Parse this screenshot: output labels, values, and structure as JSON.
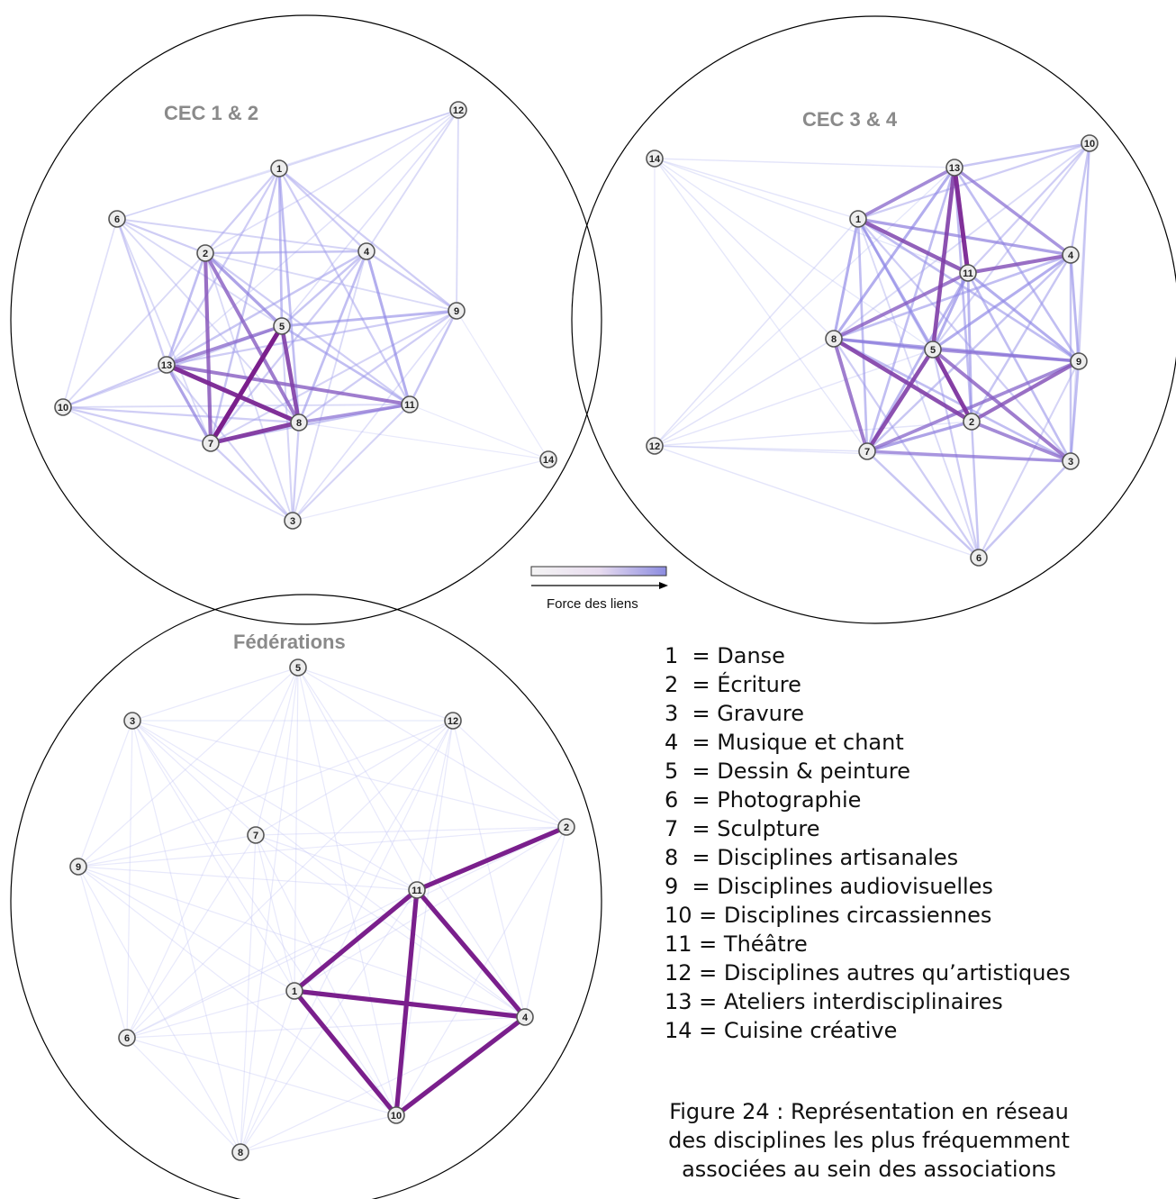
{
  "panels": [
    {
      "title": "CEC 1 & 2",
      "nodes": [
        "1",
        "2",
        "3",
        "4",
        "5",
        "6",
        "7",
        "8",
        "9",
        "10",
        "11",
        "12",
        "13",
        "14"
      ],
      "edges": [
        [
          "5",
          "7",
          1.0
        ],
        [
          "13",
          "8",
          0.95
        ],
        [
          "7",
          "8",
          0.9
        ],
        [
          "5",
          "8",
          0.85
        ],
        [
          "2",
          "7",
          0.75
        ],
        [
          "2",
          "8",
          0.7
        ],
        [
          "13",
          "11",
          0.7
        ],
        [
          "13",
          "5",
          0.65
        ],
        [
          "8",
          "11",
          0.6
        ],
        [
          "2",
          "5",
          0.55
        ],
        [
          "13",
          "7",
          0.55
        ],
        [
          "4",
          "11",
          0.5
        ],
        [
          "5",
          "9",
          0.45
        ],
        [
          "1",
          "5",
          0.4
        ],
        [
          "1",
          "8",
          0.4
        ],
        [
          "4",
          "8",
          0.4
        ],
        [
          "1",
          "7",
          0.35
        ],
        [
          "4",
          "5",
          0.35
        ],
        [
          "2",
          "4",
          0.35
        ],
        [
          "9",
          "11",
          0.35
        ],
        [
          "13",
          "4",
          0.35
        ],
        [
          "1",
          "2",
          0.3
        ],
        [
          "1",
          "4",
          0.3
        ],
        [
          "1",
          "9",
          0.3
        ],
        [
          "1",
          "13",
          0.3
        ],
        [
          "6",
          "2",
          0.3
        ],
        [
          "6",
          "13",
          0.3
        ],
        [
          "6",
          "4",
          0.25
        ],
        [
          "10",
          "13",
          0.3
        ],
        [
          "10",
          "7",
          0.3
        ],
        [
          "10",
          "8",
          0.3
        ],
        [
          "10",
          "5",
          0.25
        ],
        [
          "3",
          "7",
          0.3
        ],
        [
          "3",
          "8",
          0.3
        ],
        [
          "3",
          "5",
          0.25
        ],
        [
          "3",
          "13",
          0.25
        ],
        [
          "3",
          "11",
          0.25
        ],
        [
          "9",
          "8",
          0.3
        ],
        [
          "9",
          "7",
          0.25
        ],
        [
          "9",
          "13",
          0.3
        ],
        [
          "9",
          "2",
          0.2
        ],
        [
          "12",
          "1",
          0.2
        ],
        [
          "12",
          "4",
          0.2
        ],
        [
          "12",
          "9",
          0.2
        ],
        [
          "12",
          "2",
          0.15
        ],
        [
          "12",
          "5",
          0.15
        ],
        [
          "12",
          "13",
          0.12
        ],
        [
          "12",
          "6",
          0.1
        ],
        [
          "6",
          "1",
          0.15
        ],
        [
          "6",
          "7",
          0.2
        ],
        [
          "6",
          "8",
          0.2
        ],
        [
          "6",
          "5",
          0.2
        ],
        [
          "1",
          "11",
          0.3
        ],
        [
          "2",
          "11",
          0.3
        ],
        [
          "7",
          "11",
          0.35
        ],
        [
          "5",
          "11",
          0.4
        ],
        [
          "2",
          "13",
          0.4
        ],
        [
          "4",
          "9",
          0.3
        ],
        [
          "4",
          "7",
          0.3
        ],
        [
          "10",
          "6",
          0.15
        ],
        [
          "10",
          "2",
          0.2
        ],
        [
          "10",
          "11",
          0.2
        ],
        [
          "3",
          "4",
          0.2
        ],
        [
          "3",
          "9",
          0.15
        ],
        [
          "3",
          "2",
          0.2
        ],
        [
          "14",
          "11",
          0.05
        ],
        [
          "14",
          "9",
          0.05
        ],
        [
          "14",
          "3",
          0.05
        ],
        [
          "14",
          "8",
          0.05
        ],
        [
          "3",
          "10",
          0.15
        ]
      ]
    },
    {
      "title": "CEC 3 & 4",
      "nodes": [
        "1",
        "2",
        "3",
        "4",
        "5",
        "6",
        "7",
        "8",
        "9",
        "10",
        "11",
        "12",
        "13",
        "14"
      ],
      "edges": [
        [
          "13",
          "11",
          0.95
        ],
        [
          "13",
          "5",
          0.85
        ],
        [
          "5",
          "2",
          0.9
        ],
        [
          "5",
          "7",
          0.85
        ],
        [
          "8",
          "2",
          0.85
        ],
        [
          "1",
          "11",
          0.8
        ],
        [
          "2",
          "9",
          0.75
        ],
        [
          "4",
          "11",
          0.75
        ],
        [
          "8",
          "11",
          0.7
        ],
        [
          "8",
          "7",
          0.7
        ],
        [
          "5",
          "3",
          0.7
        ],
        [
          "1",
          "13",
          0.65
        ],
        [
          "13",
          "4",
          0.6
        ],
        [
          "7",
          "9",
          0.65
        ],
        [
          "5",
          "9",
          0.6
        ],
        [
          "8",
          "9",
          0.55
        ],
        [
          "8",
          "5",
          0.55
        ],
        [
          "2",
          "3",
          0.65
        ],
        [
          "7",
          "3",
          0.6
        ],
        [
          "1",
          "4",
          0.55
        ],
        [
          "13",
          "8",
          0.5
        ],
        [
          "2",
          "7",
          0.55
        ],
        [
          "1",
          "5",
          0.5
        ],
        [
          "1",
          "8",
          0.5
        ],
        [
          "11",
          "9",
          0.5
        ],
        [
          "11",
          "5",
          0.5
        ],
        [
          "4",
          "5",
          0.5
        ],
        [
          "4",
          "9",
          0.45
        ],
        [
          "3",
          "9",
          0.4
        ],
        [
          "13",
          "9",
          0.4
        ],
        [
          "13",
          "7",
          0.4
        ],
        [
          "13",
          "2",
          0.4
        ],
        [
          "10",
          "13",
          0.35
        ],
        [
          "10",
          "4",
          0.35
        ],
        [
          "10",
          "1",
          0.3
        ],
        [
          "10",
          "11",
          0.3
        ],
        [
          "10",
          "9",
          0.3
        ],
        [
          "10",
          "5",
          0.25
        ],
        [
          "11",
          "7",
          0.45
        ],
        [
          "11",
          "2",
          0.45
        ],
        [
          "11",
          "3",
          0.4
        ],
        [
          "4",
          "8",
          0.4
        ],
        [
          "4",
          "7",
          0.35
        ],
        [
          "4",
          "2",
          0.35
        ],
        [
          "4",
          "3",
          0.35
        ],
        [
          "1",
          "9",
          0.4
        ],
        [
          "1",
          "7",
          0.4
        ],
        [
          "1",
          "2",
          0.35
        ],
        [
          "1",
          "3",
          0.3
        ],
        [
          "8",
          "3",
          0.4
        ],
        [
          "6",
          "7",
          0.35
        ],
        [
          "6",
          "2",
          0.35
        ],
        [
          "6",
          "3",
          0.35
        ],
        [
          "6",
          "5",
          0.3
        ],
        [
          "6",
          "8",
          0.3
        ],
        [
          "6",
          "9",
          0.25
        ],
        [
          "6",
          "1",
          0.2
        ],
        [
          "14",
          "13",
          0.1
        ],
        [
          "14",
          "1",
          0.1
        ],
        [
          "14",
          "8",
          0.1
        ],
        [
          "14",
          "5",
          0.08
        ],
        [
          "14",
          "11",
          0.08
        ],
        [
          "14",
          "7",
          0.08
        ],
        [
          "12",
          "1",
          0.12
        ],
        [
          "12",
          "8",
          0.12
        ],
        [
          "12",
          "7",
          0.12
        ],
        [
          "12",
          "5",
          0.1
        ],
        [
          "12",
          "3",
          0.1
        ],
        [
          "12",
          "2",
          0.1
        ],
        [
          "12",
          "6",
          0.1
        ],
        [
          "12",
          "13",
          0.08
        ],
        [
          "12",
          "14",
          0.06
        ],
        [
          "10",
          "3",
          0.2
        ],
        [
          "10",
          "8",
          0.2
        ]
      ]
    },
    {
      "title": "Fédérations",
      "nodes": [
        "1",
        "2",
        "3",
        "4",
        "5",
        "6",
        "7",
        "8",
        "9",
        "10",
        "11",
        "12"
      ],
      "edges": [
        [
          "11",
          "2",
          1.0
        ],
        [
          "11",
          "1",
          1.0
        ],
        [
          "11",
          "4",
          1.0
        ],
        [
          "11",
          "10",
          1.0
        ],
        [
          "1",
          "4",
          1.0
        ],
        [
          "1",
          "10",
          1.0
        ],
        [
          "10",
          "4",
          1.0
        ],
        [
          "5",
          "3",
          0.05
        ],
        [
          "5",
          "12",
          0.05
        ],
        [
          "5",
          "7",
          0.05
        ],
        [
          "5",
          "9",
          0.05
        ],
        [
          "5",
          "6",
          0.05
        ],
        [
          "5",
          "8",
          0.05
        ],
        [
          "5",
          "1",
          0.05
        ],
        [
          "5",
          "11",
          0.05
        ],
        [
          "5",
          "10",
          0.05
        ],
        [
          "5",
          "4",
          0.05
        ],
        [
          "5",
          "2",
          0.05
        ],
        [
          "3",
          "12",
          0.05
        ],
        [
          "3",
          "7",
          0.05
        ],
        [
          "3",
          "9",
          0.05
        ],
        [
          "3",
          "6",
          0.05
        ],
        [
          "3",
          "8",
          0.05
        ],
        [
          "3",
          "1",
          0.05
        ],
        [
          "3",
          "11",
          0.05
        ],
        [
          "3",
          "2",
          0.05
        ],
        [
          "3",
          "10",
          0.05
        ],
        [
          "3",
          "4",
          0.05
        ],
        [
          "12",
          "7",
          0.05
        ],
        [
          "12",
          "9",
          0.05
        ],
        [
          "12",
          "6",
          0.05
        ],
        [
          "12",
          "8",
          0.05
        ],
        [
          "12",
          "1",
          0.05
        ],
        [
          "12",
          "11",
          0.05
        ],
        [
          "12",
          "2",
          0.05
        ],
        [
          "12",
          "10",
          0.05
        ],
        [
          "12",
          "4",
          0.05
        ],
        [
          "9",
          "7",
          0.05
        ],
        [
          "9",
          "2",
          0.05
        ],
        [
          "9",
          "11",
          0.05
        ],
        [
          "9",
          "1",
          0.05
        ],
        [
          "9",
          "6",
          0.05
        ],
        [
          "9",
          "8",
          0.05
        ],
        [
          "9",
          "10",
          0.05
        ],
        [
          "9",
          "4",
          0.05
        ],
        [
          "7",
          "2",
          0.05
        ],
        [
          "7",
          "11",
          0.05
        ],
        [
          "7",
          "1",
          0.05
        ],
        [
          "7",
          "6",
          0.05
        ],
        [
          "7",
          "8",
          0.05
        ],
        [
          "7",
          "10",
          0.05
        ],
        [
          "7",
          "4",
          0.05
        ],
        [
          "6",
          "1",
          0.05
        ],
        [
          "6",
          "11",
          0.05
        ],
        [
          "6",
          "10",
          0.05
        ],
        [
          "6",
          "4",
          0.05
        ],
        [
          "6",
          "2",
          0.05
        ],
        [
          "6",
          "8",
          0.05
        ],
        [
          "8",
          "1",
          0.05
        ],
        [
          "8",
          "10",
          0.05
        ],
        [
          "8",
          "11",
          0.05
        ],
        [
          "8",
          "4",
          0.05
        ],
        [
          "2",
          "1",
          0.05
        ],
        [
          "2",
          "4",
          0.05
        ],
        [
          "2",
          "10",
          0.05
        ]
      ]
    }
  ],
  "colorbar": {
    "label": "Force des liens",
    "color_low": "#f4f4f4",
    "color_high": "#8c8ce0"
  },
  "edge_colors": {
    "weak": "#c8cdf5",
    "medium": "#8f87e6",
    "strong": "#7a1f8c"
  },
  "legend": [
    {
      "number": "1",
      "spacer": "  ",
      "name": "= Danse"
    },
    {
      "number": "2",
      "spacer": "  ",
      "name": "= Écriture"
    },
    {
      "number": "3",
      "spacer": "  ",
      "name": "= Gravure"
    },
    {
      "number": "4",
      "spacer": "  ",
      "name": "= Musique et chant"
    },
    {
      "number": "5",
      "spacer": "  ",
      "name": "= Dessin & peinture"
    },
    {
      "number": "6",
      "spacer": "  ",
      "name": "= Photographie"
    },
    {
      "number": "7",
      "spacer": "  ",
      "name": "= Sculpture"
    },
    {
      "number": "8",
      "spacer": "  ",
      "name": "= Disciplines artisanales"
    },
    {
      "number": "9",
      "spacer": "  ",
      "name": "= Disciplines audiovisuelles"
    },
    {
      "number": "10",
      "spacer": " ",
      "name": "= Disciplines circassiennes"
    },
    {
      "number": "11",
      "spacer": " ",
      "name": "= Théâtre"
    },
    {
      "number": "12",
      "spacer": " ",
      "name": "= Disciplines autres qu’artistiques"
    },
    {
      "number": "13",
      "spacer": " ",
      "name": "= Ateliers interdisciplinaires"
    },
    {
      "number": "14",
      "spacer": " ",
      "name": "= Cuisine créative"
    }
  ],
  "caption": {
    "line1": "Figure 24 : Représentation en réseau",
    "line2": "des disciplines les plus fréquemment",
    "line3": "associées au sein des associations"
  }
}
